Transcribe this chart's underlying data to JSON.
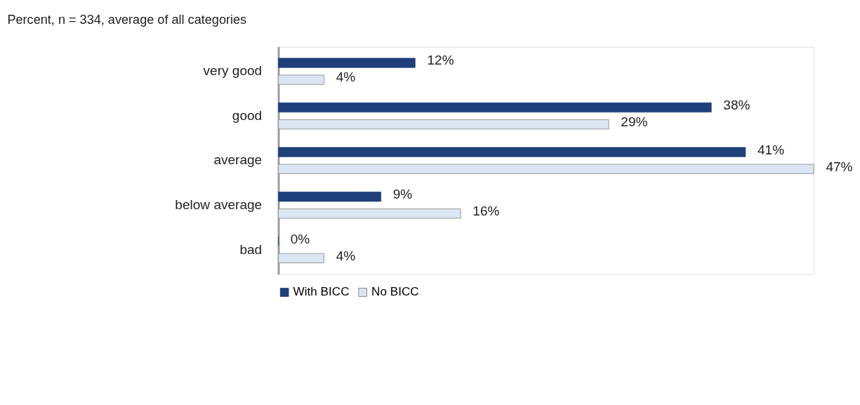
{
  "chart_data": {
    "type": "bar",
    "orientation": "horizontal",
    "title": "Percent, n = 334, average of all categories",
    "categories": [
      "very good",
      "good",
      "average",
      "below average",
      "bad"
    ],
    "series": [
      {
        "name": "With BICC",
        "color": "#1f3f7a",
        "values": [
          12,
          38,
          41,
          9,
          0
        ],
        "value_labels": [
          "12%",
          "38%",
          "41%",
          "9%",
          "0%"
        ]
      },
      {
        "name": "No BICC",
        "color": "#dce6f2",
        "values": [
          4,
          29,
          47,
          16,
          4
        ],
        "value_labels": [
          "4%",
          "29%",
          "47%",
          "16%",
          "4%"
        ]
      }
    ],
    "legend": "bottom",
    "tick_labels": "y"
  }
}
